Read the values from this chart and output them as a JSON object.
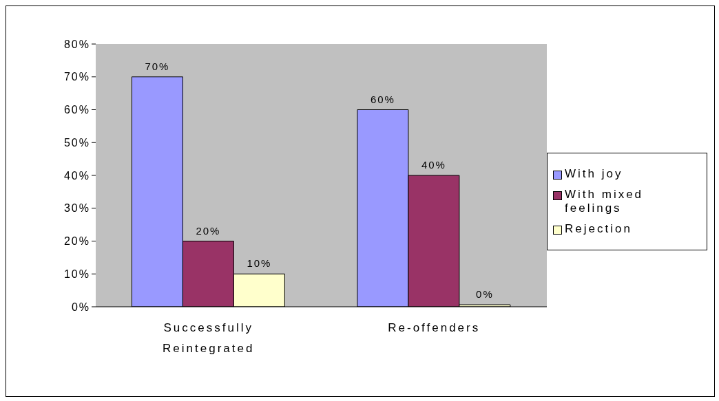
{
  "chart_data": {
    "type": "bar",
    "categories": [
      "Successfully Reintegrated",
      "Re-offenders"
    ],
    "series": [
      {
        "name": "With joy",
        "color": "#9999ff",
        "values": [
          70,
          60
        ],
        "value_labels": [
          "70%",
          "60%"
        ]
      },
      {
        "name": "With mixed feelings",
        "color": "#993366",
        "values": [
          20,
          40
        ],
        "value_labels": [
          "20%",
          "40%"
        ]
      },
      {
        "name": "Rejection",
        "color": "#ffffcc",
        "values": [
          10,
          0
        ],
        "value_labels": [
          "10%",
          "0%"
        ]
      }
    ],
    "ylim": [
      0,
      80
    ],
    "yticks": [
      {
        "value": 0,
        "label": "0%"
      },
      {
        "value": 10,
        "label": "10%"
      },
      {
        "value": 20,
        "label": "20%"
      },
      {
        "value": 30,
        "label": "30%"
      },
      {
        "value": 40,
        "label": "40%"
      },
      {
        "value": 50,
        "label": "50%"
      },
      {
        "value": 60,
        "label": "60%"
      },
      {
        "value": 70,
        "label": "70%"
      },
      {
        "value": 80,
        "label": "80%"
      }
    ],
    "legend": "right"
  }
}
